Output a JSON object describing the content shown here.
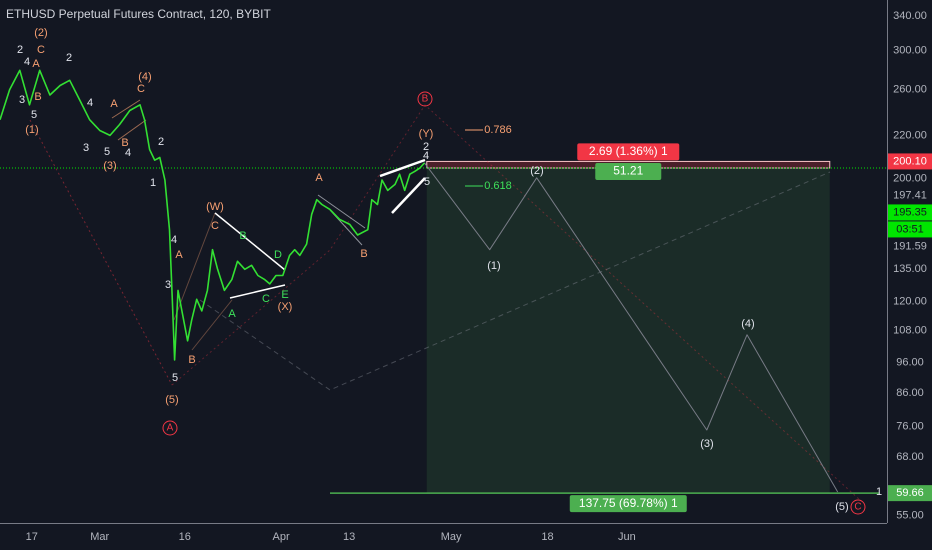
{
  "chart_data": {
    "type": "line",
    "title": "ETHUSD Perpetual Futures Contract, 120, BYBIT",
    "color": "#33e033",
    "x": [
      42.4,
      44.1,
      45.9,
      47.6,
      49.4,
      51.2,
      53,
      54.7,
      56.5,
      58.2,
      60,
      61.8,
      63.5,
      65.3,
      67.1,
      67.9,
      68.8,
      69.7,
      70.6,
      71.5,
      72.3,
      72.8,
      73.2,
      73.8,
      74.5,
      75.5,
      76.2,
      77.1,
      78,
      79,
      79.9,
      80.8,
      82,
      83.3,
      84.3,
      85.6,
      86.8,
      87.9,
      89.1,
      90,
      91.1,
      92.3,
      93.5,
      94.4,
      95.3,
      96.5,
      97.4,
      98.3,
      99.2,
      100.6,
      102.3,
      104.1,
      105.5,
      107.3,
      108,
      109,
      109.8,
      110.8,
      112.1,
      112.9,
      113.8,
      114.7,
      115.6,
      116.5,
      117.3
    ],
    "values": [
      233,
      260,
      279,
      246,
      279,
      255,
      264,
      269,
      250,
      233,
      224,
      220,
      229,
      241,
      246,
      233,
      209,
      201,
      203,
      187,
      156,
      121,
      97,
      125,
      116,
      104,
      112,
      121,
      116,
      125,
      145,
      135,
      125,
      130,
      139,
      135,
      137,
      132,
      130,
      128,
      132,
      132,
      142,
      145,
      142,
      148,
      165,
      174,
      171,
      168,
      162,
      159,
      153,
      156,
      174,
      171,
      187,
      180,
      184,
      191,
      180,
      191,
      193,
      195.4,
      199
    ],
    "projection": {
      "color": "#787b86",
      "x": [
        117.3,
        128.8,
        137.1,
        167.1,
        174.2,
        190.2
      ],
      "values": [
        199,
        145,
        188.5,
        75.1,
        106.3,
        59.9
      ]
    },
    "log_scale": true,
    "xlim": [
      42.4,
      198.9
    ],
    "ylim": [
      53.5,
      360.6
    ],
    "xticks": [
      {
        "value": 48,
        "label": "17"
      },
      {
        "value": 60,
        "label": "Mar"
      },
      {
        "value": 75,
        "label": "16"
      },
      {
        "value": 92,
        "label": "Apr"
      },
      {
        "value": 104,
        "label": "13"
      },
      {
        "value": 122,
        "label": "May"
      },
      {
        "value": 139,
        "label": "18"
      },
      {
        "value": 153,
        "label": "Jun"
      }
    ],
    "yticks": [
      {
        "value": 340,
        "label": "340.00"
      },
      {
        "value": 300,
        "label": "300.00"
      },
      {
        "value": 260,
        "label": "260.00"
      },
      {
        "value": 220,
        "label": "220.00"
      },
      {
        "value": 200,
        "label": "200.00"
      },
      {
        "value": 197.41,
        "label": "197.41"
      },
      {
        "value": 191.59,
        "label": "191.59"
      },
      {
        "value": 135,
        "label": "135.00"
      },
      {
        "value": 120,
        "label": "120.00"
      },
      {
        "value": 108,
        "label": "108.00"
      },
      {
        "value": 96,
        "label": "96.00"
      },
      {
        "value": 86,
        "label": "86.00"
      },
      {
        "value": 76,
        "label": "76.00"
      },
      {
        "value": 68,
        "label": "68.00"
      },
      {
        "value": 55,
        "label": "55.00"
      }
    ],
    "price_tags": [
      {
        "value": 200.1,
        "label": "200.10",
        "color": "#f23645"
      },
      {
        "value": 195.35,
        "label": "195.35",
        "color": "#00e600",
        "countdown": "03:51"
      },
      {
        "value": 59.66,
        "label": "59.66",
        "color": "#4caf50"
      }
    ],
    "position_tool": {
      "start": 117.7,
      "end": 188.8,
      "stop_label": "2.69 (1.36%) 1",
      "entry_label": "51.21",
      "target_label": "137.75 (69.78%) 1"
    },
    "annotations": [
      {
        "text": "2",
        "color": "#e0e3eb"
      },
      {
        "text": "4",
        "color": "#e0e3eb"
      },
      {
        "text": "3",
        "color": "#e0e3eb"
      },
      {
        "text": "5",
        "color": "#e0e3eb"
      },
      {
        "text": "(2)",
        "color": "#f7a072"
      },
      {
        "text": "C",
        "color": "#f7a072"
      },
      {
        "text": "A",
        "color": "#f7a072"
      },
      {
        "text": "B",
        "color": "#f7a072"
      },
      {
        "text": "(1)",
        "color": "#f7a072"
      },
      {
        "text": "2",
        "color": "#e0e3eb"
      },
      {
        "text": "4",
        "color": "#e0e3eb"
      },
      {
        "text": "3",
        "color": "#e0e3eb"
      },
      {
        "text": "5",
        "color": "#e0e3eb"
      },
      {
        "text": "4",
        "color": "#e0e3eb"
      },
      {
        "text": "(4)",
        "color": "#f7a072"
      },
      {
        "text": "C",
        "color": "#f7a072"
      },
      {
        "text": "A",
        "color": "#f7a072"
      },
      {
        "text": "B",
        "color": "#f7a072"
      },
      {
        "text": "(3)",
        "color": "#f7a072"
      },
      {
        "text": "2",
        "color": "#e0e3eb"
      },
      {
        "text": "1",
        "color": "#e0e3eb"
      },
      {
        "text": "4",
        "color": "#e0e3eb"
      },
      {
        "text": "3",
        "color": "#e0e3eb"
      },
      {
        "text": "5",
        "color": "#e0e3eb"
      },
      {
        "text": "A",
        "color": "#f7a072"
      },
      {
        "text": "B",
        "color": "#f7a072"
      },
      {
        "text": "(5)",
        "color": "#f7a072"
      },
      {
        "text": "A",
        "color": "#f23645",
        "circled": true
      },
      {
        "text": "(W)",
        "color": "#f7a072"
      },
      {
        "text": "C",
        "color": "#f7a072"
      },
      {
        "text": "B",
        "color": "#3ee05a"
      },
      {
        "text": "D",
        "color": "#3ee05a"
      },
      {
        "text": "A",
        "color": "#3ee05a"
      },
      {
        "text": "C",
        "color": "#3ee05a"
      },
      {
        "text": "E",
        "color": "#3ee05a"
      },
      {
        "text": "(X)",
        "color": "#f7a072"
      },
      {
        "text": "A",
        "color": "#f7a072"
      },
      {
        "text": "B",
        "color": "#f7a072"
      },
      {
        "text": "B",
        "color": "#f23645",
        "circled": true
      },
      {
        "text": "(Y)",
        "color": "#f7a072"
      },
      {
        "text": "2",
        "color": "#e0e3eb"
      },
      {
        "text": "4",
        "color": "#e0e3eb"
      },
      {
        "text": "5",
        "color": "#e0e3eb"
      },
      {
        "text": "(1)",
        "color": "#e0e3eb"
      },
      {
        "text": "(2)",
        "color": "#e0e3eb"
      },
      {
        "text": "(3)",
        "color": "#e0e3eb"
      },
      {
        "text": "(4)",
        "color": "#e0e3eb"
      },
      {
        "text": "(5)",
        "color": "#e0e3eb"
      },
      {
        "text": "C",
        "color": "#f23645",
        "circled": true
      },
      {
        "text": "0.786",
        "color": "#f7a072"
      },
      {
        "text": "0.618",
        "color": "#3ee05a"
      },
      {
        "text": "1",
        "color": "#e0e3eb"
      }
    ]
  }
}
